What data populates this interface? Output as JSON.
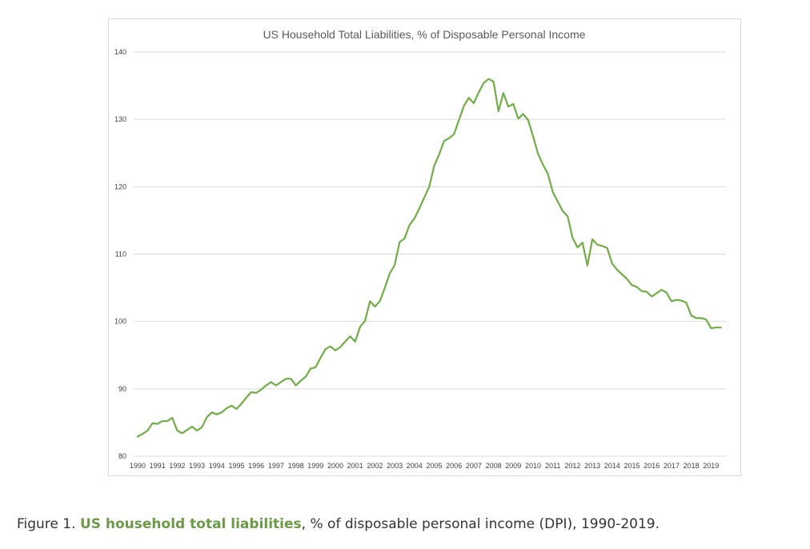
{
  "chart_data": {
    "type": "line",
    "title": "US Household Total Liabilities, % of Disposable Personal Income",
    "xlabel": "",
    "ylabel": "",
    "ylim": [
      80,
      140
    ],
    "yticks": [
      80,
      90,
      100,
      110,
      120,
      130,
      140
    ],
    "xticks": [
      "1990",
      "1991",
      "1992",
      "1993",
      "1994",
      "1995",
      "1996",
      "1997",
      "1998",
      "1999",
      "2000",
      "2001",
      "2002",
      "2003",
      "2004",
      "2005",
      "2006",
      "2007",
      "2008",
      "2009",
      "2010",
      "2011",
      "2012",
      "2013",
      "2014",
      "2015",
      "2016",
      "2017",
      "2018",
      "2019"
    ],
    "grid": "horizontal",
    "legend": "none",
    "line_color": "#70ad47",
    "series": [
      {
        "x": [
          1990.0,
          1990.25,
          1990.5,
          1990.75,
          1991.0,
          1991.25,
          1991.5,
          1991.75,
          1992.0,
          1992.25,
          1992.5,
          1992.75,
          1993.0,
          1993.25,
          1993.5,
          1993.75,
          1994.0,
          1994.25,
          1994.5,
          1994.75,
          1995.0,
          1995.25,
          1995.5,
          1995.75,
          1996.0,
          1996.25,
          1996.5,
          1996.75,
          1997.0,
          1997.25,
          1997.5,
          1997.75,
          1998.0,
          1998.25,
          1998.5,
          1998.75,
          1999.0,
          1999.25,
          1999.5,
          1999.75,
          2000.0,
          2000.25,
          2000.5,
          2000.75,
          2001.0,
          2001.25,
          2001.5,
          2001.75,
          2002.0,
          2002.25,
          2002.5,
          2002.75,
          2003.0,
          2003.25,
          2003.5,
          2003.75,
          2004.0,
          2004.25,
          2004.5,
          2004.75,
          2005.0,
          2005.25,
          2005.5,
          2005.75,
          2006.0,
          2006.25,
          2006.5,
          2006.75,
          2007.0,
          2007.25,
          2007.5,
          2007.75,
          2008.0,
          2008.25,
          2008.5,
          2008.75,
          2009.0,
          2009.25,
          2009.5,
          2009.75,
          2010.0,
          2010.25,
          2010.5,
          2010.75,
          2011.0,
          2011.25,
          2011.5,
          2011.75,
          2012.0,
          2012.25,
          2012.5,
          2012.75,
          2013.0,
          2013.25,
          2013.5,
          2013.75,
          2014.0,
          2014.25,
          2014.5,
          2014.75,
          2015.0,
          2015.25,
          2015.5,
          2015.75,
          2016.0,
          2016.25,
          2016.5,
          2016.75,
          2017.0,
          2017.25,
          2017.5,
          2017.75,
          2018.0,
          2018.25,
          2018.5,
          2018.75,
          2019.0,
          2019.25,
          2019.5
        ],
        "values": [
          82.9,
          83.3,
          83.8,
          84.9,
          84.8,
          85.2,
          85.2,
          85.7,
          83.8,
          83.4,
          83.9,
          84.4,
          83.8,
          84.3,
          85.8,
          86.5,
          86.2,
          86.5,
          87.1,
          87.5,
          87.0,
          87.8,
          88.7,
          89.5,
          89.4,
          89.9,
          90.5,
          91.0,
          90.5,
          91.0,
          91.5,
          91.5,
          90.5,
          91.2,
          91.8,
          93.0,
          93.2,
          94.6,
          95.9,
          96.3,
          95.7,
          96.2,
          97.0,
          97.8,
          97.0,
          99.2,
          100.1,
          103.0,
          102.2,
          103.0,
          105.0,
          107.1,
          108.4,
          111.8,
          112.3,
          114.3,
          115.3,
          116.8,
          118.4,
          120.0,
          123.1,
          124.8,
          126.8,
          127.2,
          127.8,
          129.9,
          132.0,
          133.2,
          132.4,
          134.0,
          135.4,
          136.0,
          135.6,
          131.2,
          133.9,
          131.9,
          132.3,
          130.1,
          130.8,
          129.9,
          127.5,
          124.9,
          123.3,
          121.9,
          119.2,
          117.8,
          116.4,
          115.6,
          112.4,
          111.0,
          111.7,
          108.3,
          112.2,
          111.4,
          111.2,
          110.9,
          108.6,
          107.7,
          107.0,
          106.3,
          105.4,
          105.1,
          104.5,
          104.4,
          103.7,
          104.2,
          104.7,
          104.3,
          103.0,
          103.2,
          103.1,
          102.8,
          100.9,
          100.5,
          100.5,
          100.3,
          99.0,
          99.1,
          99.1
        ]
      }
    ]
  },
  "caption": {
    "prefix": "Figure 1. ",
    "link": "US household total liabilities",
    "suffix": ", % of disposable personal income (DPI), 1990-2019."
  }
}
